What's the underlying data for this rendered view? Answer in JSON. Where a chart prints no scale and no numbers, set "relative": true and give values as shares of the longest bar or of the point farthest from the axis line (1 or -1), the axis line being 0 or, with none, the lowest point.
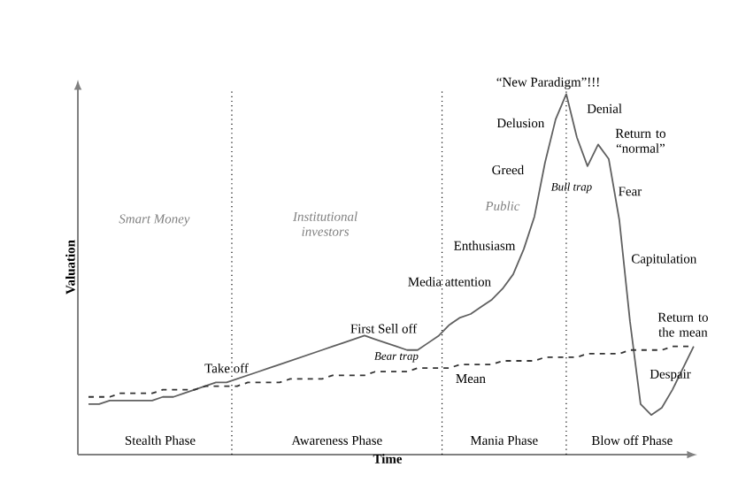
{
  "chart_data": {
    "type": "line",
    "relative": true,
    "xlabel": "Time",
    "ylabel": "Valuation",
    "tick_labels": false,
    "categories": [
      null,
      null,
      null,
      null,
      null,
      null,
      null,
      null,
      null,
      null,
      null,
      null,
      null,
      null,
      null,
      null,
      null,
      null,
      null,
      null,
      null,
      null,
      null,
      null,
      null,
      null,
      null,
      null,
      null,
      null,
      null,
      null,
      null,
      null,
      null,
      null,
      null,
      null,
      null,
      null,
      null,
      null,
      null,
      null,
      null,
      null,
      null,
      null,
      null,
      null,
      null,
      null,
      null,
      null,
      null,
      null,
      null,
      null
    ],
    "series": [
      {
        "color": "#606060",
        "line_style": "solid",
        "values": [
          0.14,
          0.14,
          0.15,
          0.15,
          0.15,
          0.15,
          0.15,
          0.16,
          0.16,
          0.17,
          0.18,
          0.19,
          0.2,
          0.2,
          0.21,
          0.22,
          0.23,
          0.24,
          0.25,
          0.26,
          0.27,
          0.28,
          0.29,
          0.3,
          0.31,
          0.32,
          0.33,
          0.32,
          0.31,
          0.3,
          0.29,
          0.29,
          0.31,
          0.33,
          0.36,
          0.38,
          0.39,
          0.41,
          0.43,
          0.46,
          0.5,
          0.57,
          0.66,
          0.81,
          0.93,
          1.0,
          0.88,
          0.8,
          0.86,
          0.82,
          0.65,
          0.37,
          0.14,
          0.11,
          0.13,
          0.18,
          0.24,
          0.3
        ]
      },
      {
        "name": "Mean",
        "color": "#333333",
        "line_style": "dashed",
        "values": [
          0.16,
          0.16,
          0.16,
          0.17,
          0.17,
          0.17,
          0.17,
          0.18,
          0.18,
          0.18,
          0.18,
          0.19,
          0.19,
          0.19,
          0.19,
          0.2,
          0.2,
          0.2,
          0.2,
          0.21,
          0.21,
          0.21,
          0.21,
          0.22,
          0.22,
          0.22,
          0.22,
          0.23,
          0.23,
          0.23,
          0.23,
          0.24,
          0.24,
          0.24,
          0.24,
          0.25,
          0.25,
          0.25,
          0.25,
          0.26,
          0.26,
          0.26,
          0.26,
          0.27,
          0.27,
          0.27,
          0.27,
          0.28,
          0.28,
          0.28,
          0.28,
          0.29,
          0.29,
          0.29,
          0.29,
          0.3,
          0.3,
          0.3
        ]
      }
    ],
    "annotations": [
      "Smart Money",
      "Institutional investors",
      "Public",
      "Bear trap",
      "Bull trap",
      "Take off",
      "First Sell off",
      "Media attention",
      "Enthusiasm",
      "Greed",
      "Delusion",
      "“New Paradigm”!!!",
      "Denial",
      "Return to “normal”",
      "Fear",
      "Capitulation",
      "Return to the mean",
      "Despair",
      "Stealth Phase",
      "Awareness Phase",
      "Mania Phase",
      "Blow off Phase"
    ]
  }
}
